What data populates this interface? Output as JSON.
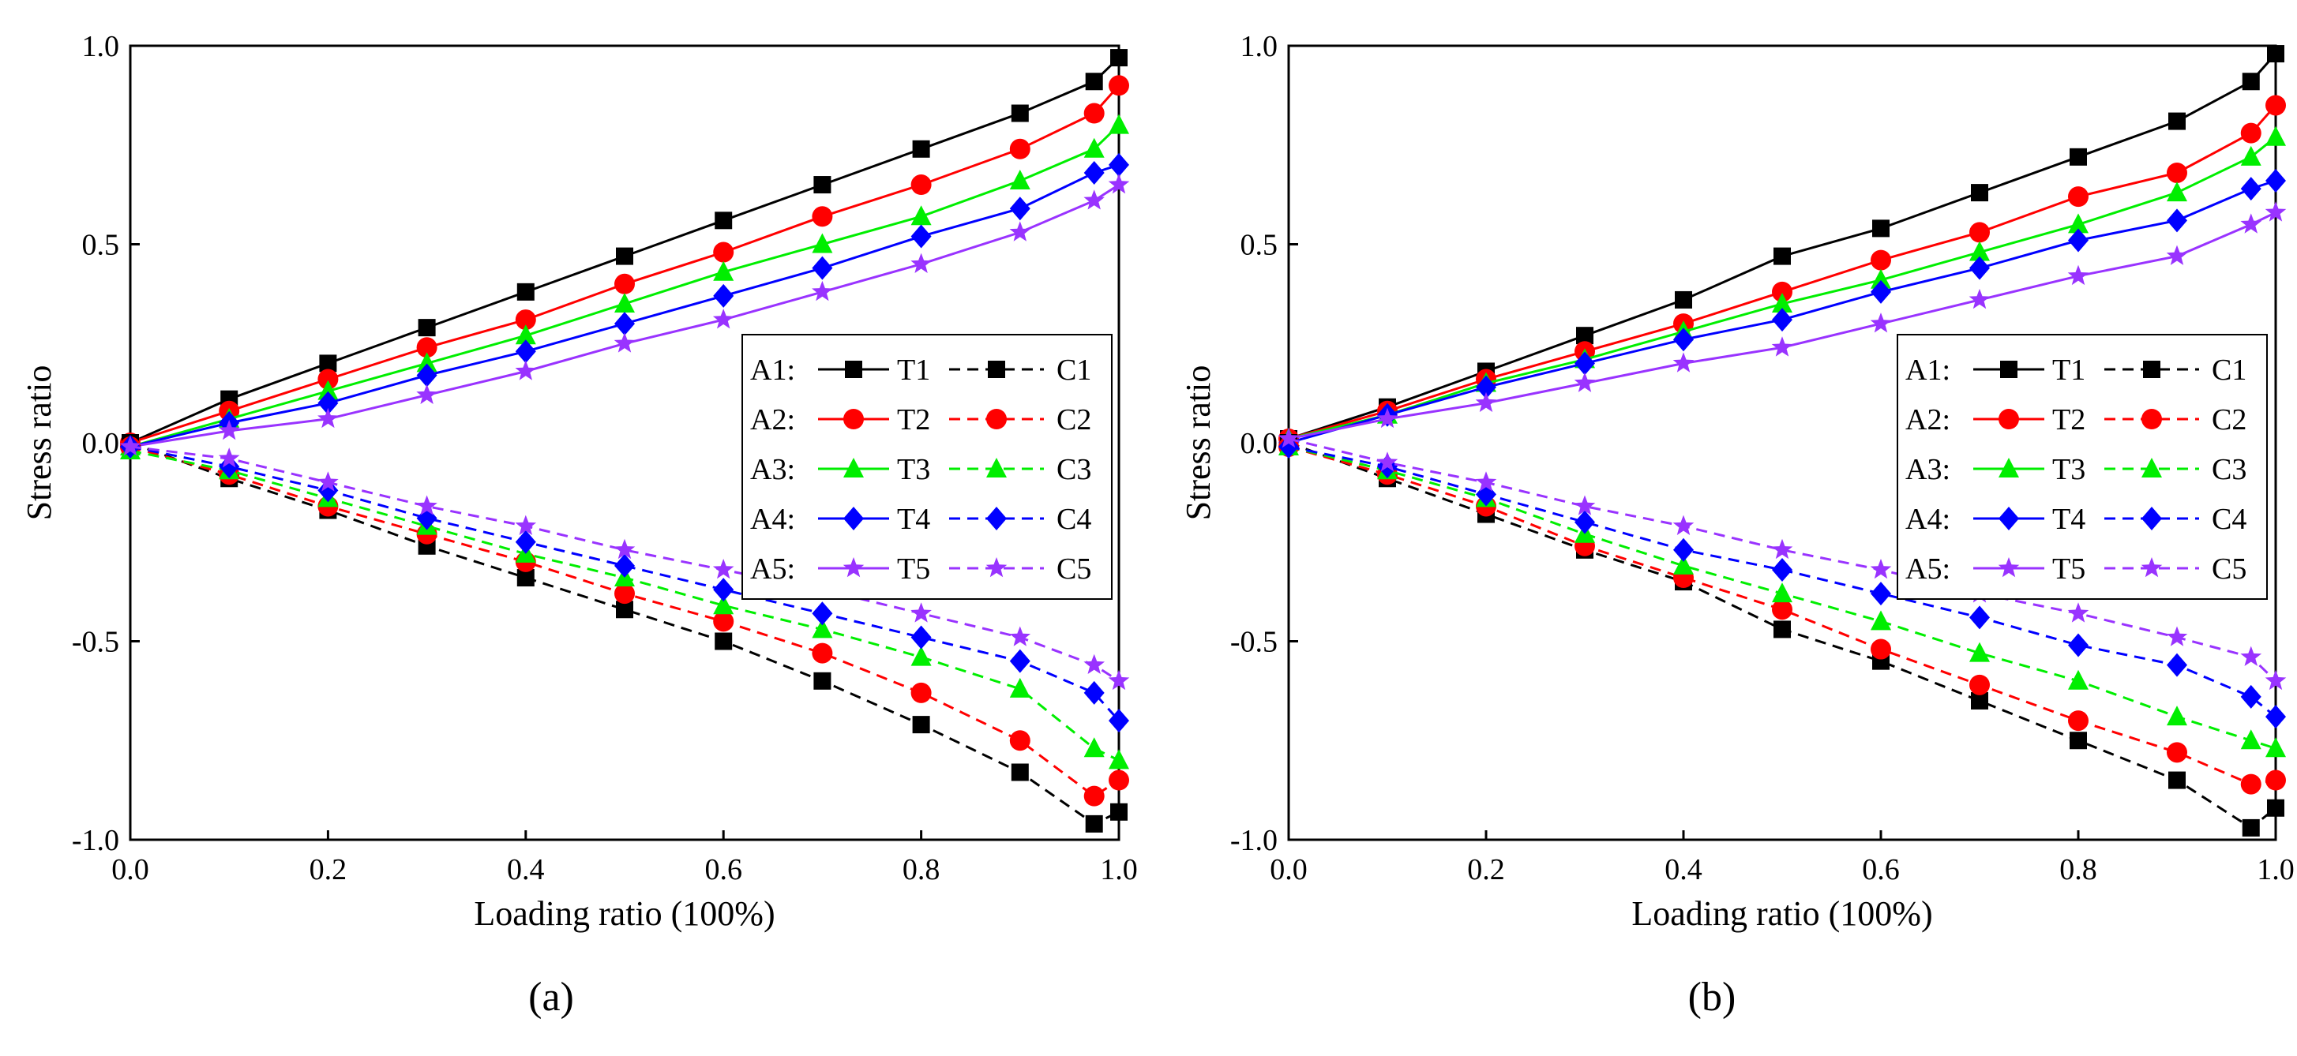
{
  "chart_data": [
    {
      "type": "line",
      "panel_label": "(a)",
      "xlabel": "Loading ratio (100%)",
      "ylabel": "Stress ratio",
      "xlim": [
        0,
        1.0
      ],
      "ylim": [
        -1.0,
        1.0
      ],
      "xticks": [
        "0.0",
        "0.2",
        "0.4",
        "0.6",
        "0.8",
        "1.0"
      ],
      "yticks": [
        "-1.0",
        "-0.5",
        "0.0",
        "0.5",
        "1.0"
      ],
      "grid": false,
      "legend_position": "center-right",
      "legend": [
        {
          "group": "A1:",
          "tension": "T1",
          "compression": "C1"
        },
        {
          "group": "A2:",
          "tension": "T2",
          "compression": "C2"
        },
        {
          "group": "A3:",
          "tension": "T3",
          "compression": "C3"
        },
        {
          "group": "A4:",
          "tension": "T4",
          "compression": "C4"
        },
        {
          "group": "A5:",
          "tension": "T5",
          "compression": "C5"
        }
      ],
      "x": [
        0,
        0.1,
        0.2,
        0.3,
        0.4,
        0.5,
        0.6,
        0.7,
        0.8,
        0.9,
        0.975,
        1.0
      ],
      "series": [
        {
          "name": "T1",
          "color": "#000000",
          "marker": "square",
          "dash": false,
          "values": [
            0,
            0.11,
            0.2,
            0.29,
            0.38,
            0.47,
            0.56,
            0.65,
            0.74,
            0.83,
            0.91,
            0.97
          ]
        },
        {
          "name": "T2",
          "color": "#ff0000",
          "marker": "circle",
          "dash": false,
          "values": [
            0,
            0.08,
            0.16,
            0.24,
            0.31,
            0.4,
            0.48,
            0.57,
            0.65,
            0.74,
            0.83,
            0.9
          ]
        },
        {
          "name": "T3",
          "color": "#00ee00",
          "marker": "triangle",
          "dash": false,
          "values": [
            -0.01,
            0.06,
            0.13,
            0.2,
            0.27,
            0.35,
            0.43,
            0.5,
            0.57,
            0.66,
            0.74,
            0.8
          ]
        },
        {
          "name": "T4",
          "color": "#0000ff",
          "marker": "diamond",
          "dash": false,
          "values": [
            -0.01,
            0.05,
            0.1,
            0.17,
            0.23,
            0.3,
            0.37,
            0.44,
            0.52,
            0.59,
            0.68,
            0.7
          ]
        },
        {
          "name": "T5",
          "color": "#9933ff",
          "marker": "star",
          "dash": false,
          "values": [
            -0.01,
            0.03,
            0.06,
            0.12,
            0.18,
            0.25,
            0.31,
            0.38,
            0.45,
            0.53,
            0.61,
            0.65
          ]
        },
        {
          "name": "C1",
          "color": "#000000",
          "marker": "square",
          "dash": true,
          "values": [
            0,
            -0.09,
            -0.17,
            -0.26,
            -0.34,
            -0.42,
            -0.5,
            -0.6,
            -0.71,
            -0.83,
            -0.96,
            -0.93
          ]
        },
        {
          "name": "C2",
          "color": "#ff0000",
          "marker": "circle",
          "dash": true,
          "values": [
            -0.01,
            -0.08,
            -0.16,
            -0.23,
            -0.3,
            -0.38,
            -0.45,
            -0.53,
            -0.63,
            -0.75,
            -0.89,
            -0.85
          ]
        },
        {
          "name": "C3",
          "color": "#00ee00",
          "marker": "triangle",
          "dash": true,
          "values": [
            -0.02,
            -0.07,
            -0.14,
            -0.21,
            -0.28,
            -0.34,
            -0.41,
            -0.47,
            -0.54,
            -0.62,
            -0.77,
            -0.8
          ]
        },
        {
          "name": "C4",
          "color": "#0000ff",
          "marker": "diamond",
          "dash": true,
          "values": [
            -0.01,
            -0.06,
            -0.12,
            -0.19,
            -0.25,
            -0.31,
            -0.37,
            -0.43,
            -0.49,
            -0.55,
            -0.63,
            -0.7
          ]
        },
        {
          "name": "C5",
          "color": "#9933ff",
          "marker": "star",
          "dash": true,
          "values": [
            -0.01,
            -0.04,
            -0.1,
            -0.16,
            -0.21,
            -0.27,
            -0.32,
            -0.37,
            -0.43,
            -0.49,
            -0.56,
            -0.6
          ]
        }
      ]
    },
    {
      "type": "line",
      "panel_label": "(b)",
      "xlabel": "Loading ratio (100%)",
      "ylabel": "Stress ratio",
      "xlim": [
        0,
        1.0
      ],
      "ylim": [
        -1.0,
        1.0
      ],
      "xticks": [
        "0.0",
        "0.2",
        "0.4",
        "0.6",
        "0.8",
        "1.0"
      ],
      "yticks": [
        "-1.0",
        "-0.5",
        "0.0",
        "0.5",
        "1.0"
      ],
      "grid": false,
      "legend_position": "center-right",
      "legend": [
        {
          "group": "A1:",
          "tension": "T1",
          "compression": "C1"
        },
        {
          "group": "A2:",
          "tension": "T2",
          "compression": "C2"
        },
        {
          "group": "A3:",
          "tension": "T3",
          "compression": "C3"
        },
        {
          "group": "A4:",
          "tension": "T4",
          "compression": "C4"
        },
        {
          "group": "A5:",
          "tension": "T5",
          "compression": "C5"
        }
      ],
      "x": [
        0,
        0.1,
        0.2,
        0.3,
        0.4,
        0.5,
        0.6,
        0.7,
        0.8,
        0.9,
        0.975,
        1.0
      ],
      "series": [
        {
          "name": "T1",
          "color": "#000000",
          "marker": "square",
          "dash": false,
          "values": [
            0.01,
            0.09,
            0.18,
            0.27,
            0.36,
            0.47,
            0.54,
            0.63,
            0.72,
            0.81,
            0.91,
            0.98
          ]
        },
        {
          "name": "T2",
          "color": "#ff0000",
          "marker": "circle",
          "dash": false,
          "values": [
            0.01,
            0.08,
            0.16,
            0.23,
            0.3,
            0.38,
            0.46,
            0.53,
            0.62,
            0.68,
            0.78,
            0.85
          ]
        },
        {
          "name": "T3",
          "color": "#00ee00",
          "marker": "triangle",
          "dash": false,
          "values": [
            0.01,
            0.07,
            0.15,
            0.21,
            0.28,
            0.35,
            0.41,
            0.48,
            0.55,
            0.63,
            0.72,
            0.77
          ]
        },
        {
          "name": "T4",
          "color": "#0000ff",
          "marker": "diamond",
          "dash": false,
          "values": [
            0,
            0.07,
            0.14,
            0.2,
            0.26,
            0.31,
            0.38,
            0.44,
            0.51,
            0.56,
            0.64,
            0.66
          ]
        },
        {
          "name": "T5",
          "color": "#9933ff",
          "marker": "star",
          "dash": false,
          "values": [
            0.01,
            0.06,
            0.1,
            0.15,
            0.2,
            0.24,
            0.3,
            0.36,
            0.42,
            0.47,
            0.55,
            0.58
          ]
        },
        {
          "name": "C1",
          "color": "#000000",
          "marker": "square",
          "dash": true,
          "values": [
            0,
            -0.09,
            -0.18,
            -0.27,
            -0.35,
            -0.47,
            -0.55,
            -0.65,
            -0.75,
            -0.85,
            -0.97,
            -0.92
          ]
        },
        {
          "name": "C2",
          "color": "#ff0000",
          "marker": "circle",
          "dash": true,
          "values": [
            -0.01,
            -0.08,
            -0.16,
            -0.26,
            -0.34,
            -0.42,
            -0.52,
            -0.61,
            -0.7,
            -0.78,
            -0.86,
            -0.85
          ]
        },
        {
          "name": "C3",
          "color": "#00ee00",
          "marker": "triangle",
          "dash": true,
          "values": [
            -0.01,
            -0.07,
            -0.14,
            -0.23,
            -0.31,
            -0.38,
            -0.45,
            -0.53,
            -0.6,
            -0.69,
            -0.75,
            -0.77
          ]
        },
        {
          "name": "C4",
          "color": "#0000ff",
          "marker": "diamond",
          "dash": true,
          "values": [
            -0.01,
            -0.06,
            -0.13,
            -0.2,
            -0.27,
            -0.32,
            -0.38,
            -0.44,
            -0.51,
            -0.56,
            -0.64,
            -0.69
          ]
        },
        {
          "name": "C5",
          "color": "#9933ff",
          "marker": "star",
          "dash": true,
          "values": [
            0.01,
            -0.05,
            -0.1,
            -0.16,
            -0.21,
            -0.27,
            -0.32,
            -0.38,
            -0.43,
            -0.49,
            -0.54,
            -0.6
          ]
        }
      ]
    }
  ]
}
